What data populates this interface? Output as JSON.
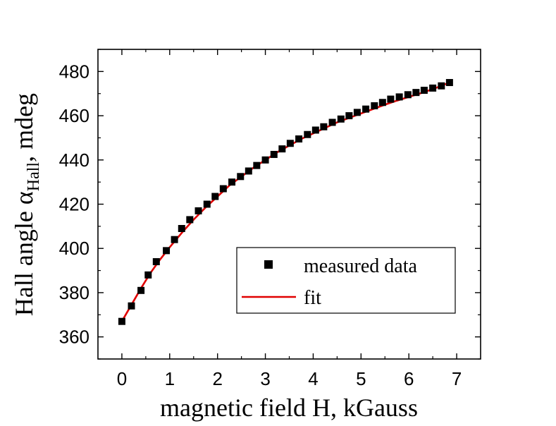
{
  "chart_data": {
    "type": "scatter",
    "xlabel": "magnetic field H, kGauss",
    "ylabel": {
      "prefix": "Hall angle α",
      "subscript": "Hall",
      "suffix": ", mdeg"
    },
    "xlim": [
      -0.5,
      7.5
    ],
    "ylim": [
      350,
      490
    ],
    "xticks": [
      0,
      1,
      2,
      3,
      4,
      5,
      6,
      7
    ],
    "yticks": [
      360,
      380,
      400,
      420,
      440,
      460,
      480
    ],
    "grid": false,
    "legend_position": "lower-right",
    "series": [
      {
        "name": "measured data",
        "kind": "scatter",
        "marker": "square",
        "color": "#000000",
        "x": [
          0.0,
          0.2,
          0.4,
          0.55,
          0.72,
          0.93,
          1.1,
          1.25,
          1.42,
          1.6,
          1.78,
          1.95,
          2.12,
          2.3,
          2.48,
          2.65,
          2.82,
          3.0,
          3.18,
          3.35,
          3.52,
          3.7,
          3.88,
          4.05,
          4.22,
          4.4,
          4.58,
          4.75,
          4.92,
          5.1,
          5.28,
          5.45,
          5.62,
          5.8,
          5.98,
          6.15,
          6.32,
          6.5,
          6.68,
          6.85
        ],
        "y": [
          367,
          374,
          381,
          388,
          394,
          399,
          404,
          409,
          413,
          417,
          420,
          423.5,
          427,
          430,
          432.5,
          435,
          437.5,
          440,
          442.5,
          445,
          447.5,
          449.5,
          451.5,
          453.5,
          455,
          457,
          458.5,
          460,
          461.5,
          463,
          464.5,
          466,
          467.5,
          468.5,
          469.5,
          470.5,
          471.5,
          472.5,
          473.5,
          475
        ]
      },
      {
        "name": "fit",
        "kind": "line",
        "color": "#e00000",
        "x": [
          0.0,
          0.2,
          0.4,
          0.6,
          0.8,
          1.0,
          1.25,
          1.5,
          1.75,
          2.0,
          2.25,
          2.5,
          2.75,
          3.0,
          3.25,
          3.5,
          3.75,
          4.0,
          4.25,
          4.5,
          4.75,
          5.0,
          5.25,
          5.5,
          5.75,
          6.0,
          6.25,
          6.5,
          6.85
        ],
        "y": [
          367,
          374.5,
          382,
          389,
          395,
          400.5,
          407,
          413,
          418.5,
          423.5,
          428.5,
          432.5,
          436.5,
          440,
          443.5,
          446.5,
          449.5,
          452,
          454.5,
          457,
          459,
          461,
          463,
          465,
          466.8,
          468.5,
          470.2,
          472,
          475
        ]
      }
    ]
  }
}
